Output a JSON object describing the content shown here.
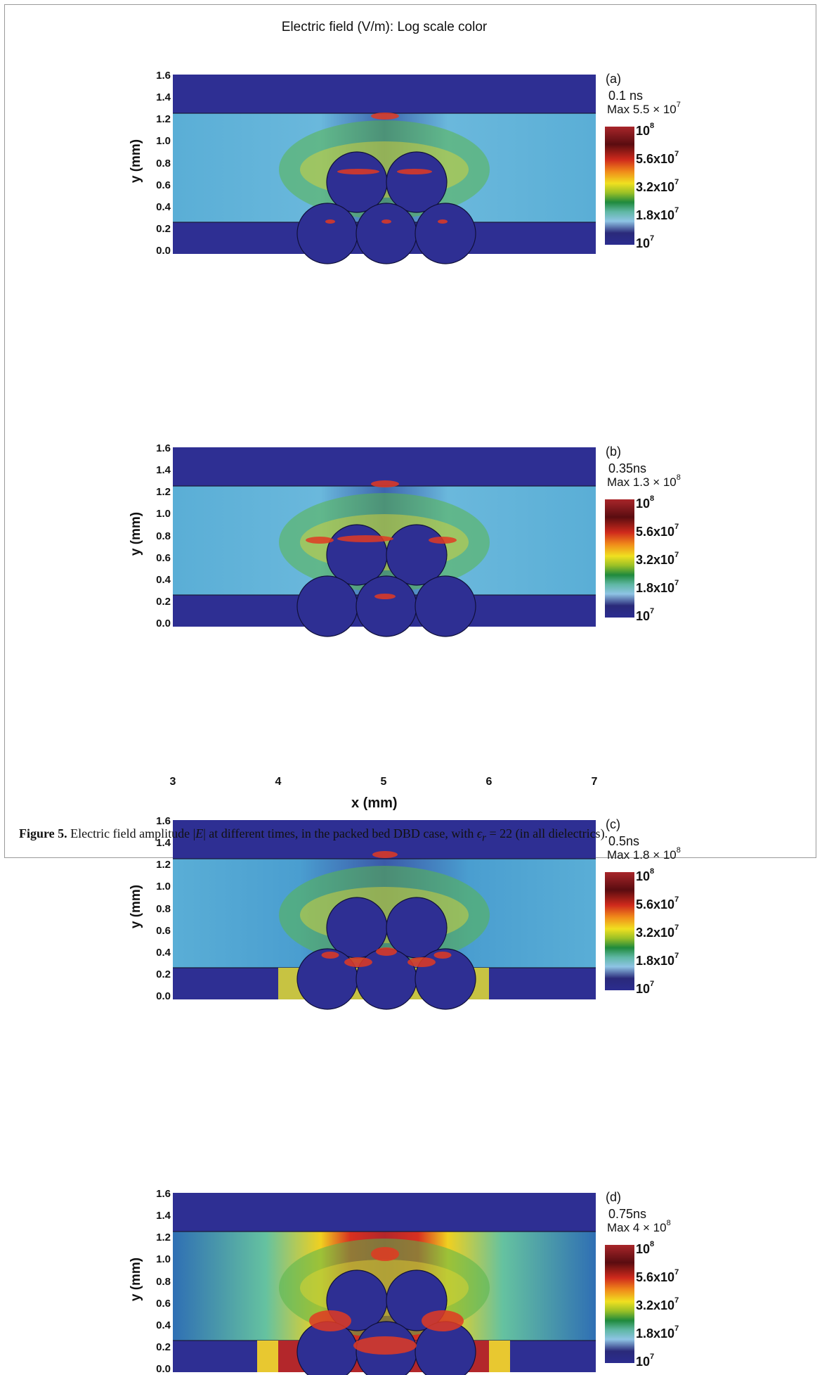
{
  "figure": {
    "main_title": "Electric field (V/m): Log scale color",
    "y_axis_label": "y (mm)",
    "x_axis_label": "x (mm)",
    "y_ticks": [
      "1.6",
      "1.4",
      "1.2",
      "1.0",
      "0.8",
      "0.6",
      "0.4",
      "0.2",
      "0.0"
    ],
    "x_ticks": [
      "3",
      "4",
      "5",
      "6",
      "7"
    ],
    "colorbar_ticks": [
      "10",
      "5.6x10",
      "3.2x10",
      "1.8x10",
      "10"
    ],
    "colorbar_exponents": [
      "8",
      "7",
      "7",
      "7",
      "7"
    ],
    "colors": {
      "background_field": "#5aaed6",
      "dielectric": "#2e2f93",
      "hot": "#b3272b"
    },
    "panels": [
      {
        "letter": "(a)",
        "time": "0.1 ns",
        "max_mantissa": "Max 5.5 × 10",
        "max_exponent": "7"
      },
      {
        "letter": "(b)",
        "time": "0.35ns",
        "max_mantissa": "Max 1.3 × 10",
        "max_exponent": "8"
      },
      {
        "letter": "(c)",
        "time": "0.5ns",
        "max_mantissa": "Max 1.8 × 10",
        "max_exponent": "8"
      },
      {
        "letter": "(d)",
        "time": "0.75ns",
        "max_mantissa": "Max 4 × 10",
        "max_exponent": "8"
      }
    ]
  },
  "caption": {
    "label": "Figure 5.",
    "text_before": " Electric field amplitude |",
    "symbol_E": "E",
    "text_middle": "| at different times, in the packed bed DBD case, with ",
    "symbol_eps": "ϵ",
    "subscript_r": "r",
    "text_after": " = 22 (in all dielectrics)."
  }
}
